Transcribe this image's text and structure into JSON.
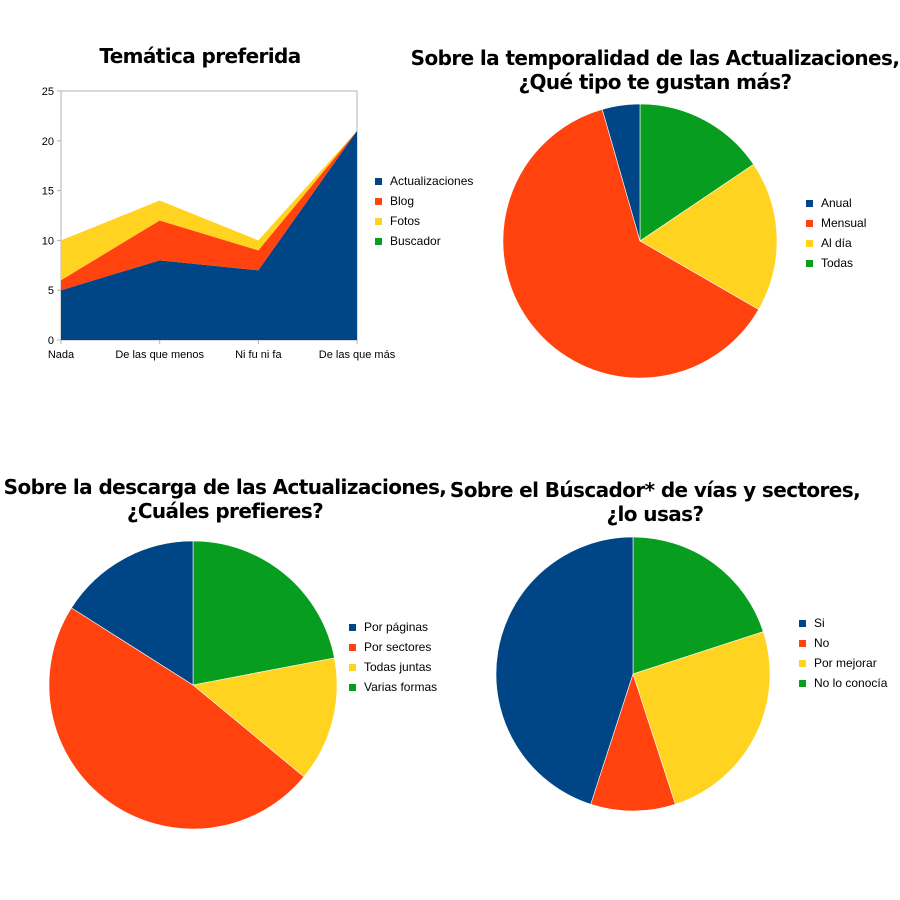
{
  "colors": {
    "blue": "#004586",
    "orange": "#ff420e",
    "yellow": "#ffd320",
    "green": "#079e1f"
  },
  "chart_data": [
    {
      "type": "area",
      "stacked": true,
      "title": "Temática preferida",
      "categories": [
        "Nada",
        "De las que menos",
        "Ni fu ni fa",
        "De las que más"
      ],
      "ylim": [
        0,
        25
      ],
      "yticks": [
        0,
        5,
        10,
        15,
        20,
        25
      ],
      "grid": false,
      "legend_position": "right",
      "series": [
        {
          "name": "Actualizaciones",
          "values": [
            5,
            8,
            7,
            21
          ],
          "color": "#004586"
        },
        {
          "name": "Blog",
          "values": [
            1,
            4,
            2,
            0
          ],
          "color": "#ff420e"
        },
        {
          "name": "Fotos",
          "values": [
            4,
            2,
            1,
            0
          ],
          "color": "#ffd320"
        },
        {
          "name": "Buscador",
          "values": [
            0,
            0,
            0,
            0
          ],
          "color": "#079e1f"
        }
      ]
    },
    {
      "type": "pie",
      "title": "Sobre la temporalidad de las Actualizaciones,\n¿Qué tipo te gustan más?",
      "legend_position": "right",
      "labels": [
        "Anual",
        "Mensual",
        "Al día",
        "Todas"
      ],
      "values": [
        1,
        14,
        4,
        3.5
      ],
      "colors": [
        "#004586",
        "#ff420e",
        "#ffd320",
        "#079e1f"
      ]
    },
    {
      "type": "pie",
      "title": "Sobre la descarga de las Actualizaciones,\n¿Cuáles prefieres?",
      "legend_position": "right",
      "labels": [
        "Por páginas",
        "Por sectores",
        "Todas juntas",
        "Varias formas"
      ],
      "values": [
        16,
        48,
        14,
        22
      ],
      "colors": [
        "#004586",
        "#ff420e",
        "#ffd320",
        "#079e1f"
      ]
    },
    {
      "type": "pie",
      "title": "Sobre el Búscador* de vías y sectores,\n¿lo usas?",
      "legend_position": "right",
      "labels": [
        "Si",
        "No",
        "Por mejorar",
        "No lo conocía"
      ],
      "values": [
        45,
        10,
        25,
        20
      ],
      "colors": [
        "#004586",
        "#ff420e",
        "#ffd320",
        "#079e1f"
      ]
    }
  ]
}
